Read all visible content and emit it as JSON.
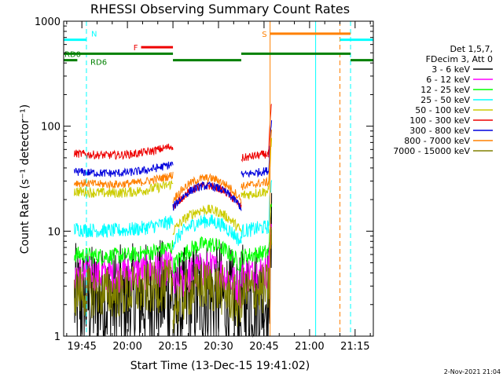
{
  "chart_data": {
    "type": "line",
    "title": "RHESSI Observing Summary Count Rates",
    "xlabel": "Start Time (13-Dec-15 19:41:02)",
    "ylabel": "Count Rate (s⁻¹ detector⁻¹)",
    "yscale": "log",
    "ylim": [
      1,
      1000
    ],
    "xlim_minutes": [
      -6,
      96
    ],
    "x_ticks": [
      {
        "label": "19:45",
        "t": 0
      },
      {
        "label": "20:00",
        "t": 15
      },
      {
        "label": "20:15",
        "t": 30
      },
      {
        "label": "20:30",
        "t": 45
      },
      {
        "label": "20:45",
        "t": 60
      },
      {
        "label": "21:00",
        "t": 75
      },
      {
        "label": "21:15",
        "t": 90
      }
    ],
    "y_ticks": [
      {
        "label": "1",
        "v": 1
      },
      {
        "label": "10",
        "v": 10
      },
      {
        "label": "100",
        "v": 100
      },
      {
        "label": "1000",
        "v": 1000
      }
    ],
    "legend": {
      "placement": "right",
      "header": [
        "Det 1,5,7,",
        "FDecim 3, Att 0"
      ],
      "entries": [
        {
          "name": "3 - 6 keV",
          "color": "#000000"
        },
        {
          "name": "6 - 12 keV",
          "color": "#ff00ff"
        },
        {
          "name": "12 - 25 keV",
          "color": "#00ff00"
        },
        {
          "name": "25 - 50 keV",
          "color": "#00ffff"
        },
        {
          "name": "50 - 100 keV",
          "color": "#cccc00"
        },
        {
          "name": "100 - 300 keV",
          "color": "#ee0000"
        },
        {
          "name": "300 - 800 keV",
          "color": "#0000dd"
        },
        {
          "name": "800 - 7000 keV",
          "color": "#ff8000"
        },
        {
          "name": "7000 - 15000 keV",
          "color": "#808000"
        }
      ]
    },
    "segments": [
      [
        -2.5,
        30
      ],
      [
        30,
        52.5
      ],
      [
        52.5,
        61.5
      ],
      [
        61.5,
        62.5
      ]
    ],
    "series": [
      {
        "name": "3 - 6 keV",
        "color": "#000000",
        "levels": [
          2.2,
          2.5,
          2.3
        ],
        "noise": 0.55
      },
      {
        "name": "6 - 12 keV",
        "color": "#ff00ff",
        "levels": [
          4.0,
          4.3,
          4.0
        ],
        "noise": 0.18
      },
      {
        "name": "12 - 25 keV",
        "color": "#00ff00",
        "levels": [
          6.0,
          7.5,
          6.0
        ],
        "noise": 0.08
      },
      {
        "name": "25 - 50 keV",
        "color": "#00ffff",
        "levels": [
          10.5,
          12.5,
          10.5
        ],
        "noise": 0.07
      },
      {
        "name": "50 - 100 keV",
        "color": "#cccc00",
        "levels": [
          24,
          16,
          23
        ],
        "noise": 0.05
      },
      {
        "name": "100 - 300 keV",
        "color": "#ee0000",
        "levels": [
          55,
          27,
          52
        ],
        "noise": 0.04
      },
      {
        "name": "300 - 800 keV",
        "color": "#0000dd",
        "levels": [
          37,
          27,
          36
        ],
        "noise": 0.04
      },
      {
        "name": "800 - 7000 keV",
        "color": "#ff8000",
        "levels": [
          29,
          32,
          28
        ],
        "noise": 0.04
      },
      {
        "name": "7000 - 15000 keV",
        "color": "#808000",
        "levels": [
          2.7,
          3.0,
          2.7
        ],
        "noise": 0.25
      }
    ],
    "state_bars": [
      {
        "label": "N",
        "color": "#00ffff",
        "ranges": [
          [
            -6,
            1.5
          ],
          [
            85,
            96
          ]
        ],
        "level": 665
      },
      {
        "label": "F",
        "color": "#ee0000",
        "ranges": [
          [
            19.5,
            30
          ]
        ],
        "level": 565
      },
      {
        "label": "S",
        "color": "#ff8000",
        "ranges": [
          [
            62,
            88.5
          ]
        ],
        "level": 760
      },
      {
        "label": "RD0",
        "color": "#008000",
        "ranges": [
          [
            -6,
            30
          ],
          [
            52.5,
            88.5
          ]
        ],
        "level": 490
      },
      {
        "label": "RD6",
        "color": "#008000",
        "ranges": [
          [
            -6,
            -1.5
          ],
          [
            30,
            52.5
          ],
          [
            88.5,
            96
          ]
        ],
        "level": 425
      }
    ],
    "vlines": [
      {
        "t": -6,
        "color": "#00ffff",
        "style": "solid"
      },
      {
        "t": 1.5,
        "color": "#00ffff",
        "style": "dashed"
      },
      {
        "t": 62,
        "color": "#ff8000",
        "style": "solid"
      },
      {
        "t": 77,
        "color": "#00ffff",
        "style": "solid"
      },
      {
        "t": 85,
        "color": "#ff8000",
        "style": "dashed"
      },
      {
        "t": 88.5,
        "color": "#00ffff",
        "style": "dashed"
      }
    ],
    "footer_date": "2-Nov-2021 21:04"
  }
}
